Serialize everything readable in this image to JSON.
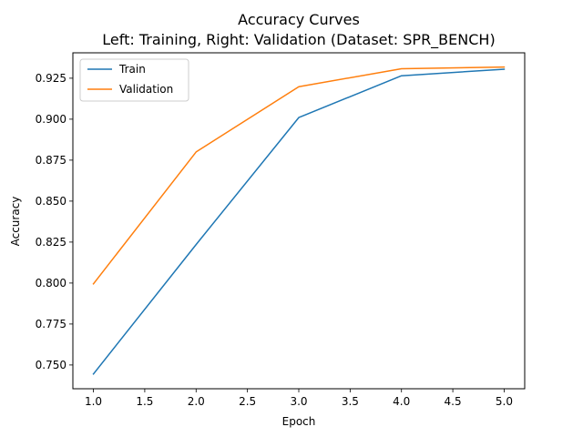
{
  "chart_data": {
    "type": "line",
    "title_line1": "Accuracy Curves",
    "title_line2": "Left: Training, Right: Validation  (Dataset: SPR_BENCH)",
    "xlabel": "Epoch",
    "ylabel": "Accuracy",
    "xlim": [
      0.8,
      5.2
    ],
    "ylim": [
      0.7355,
      0.9405
    ],
    "xticks": [
      1.0,
      1.5,
      2.0,
      2.5,
      3.0,
      3.5,
      4.0,
      4.5,
      5.0
    ],
    "yticks": [
      0.75,
      0.775,
      0.8,
      0.825,
      0.85,
      0.875,
      0.9,
      0.925
    ],
    "x": [
      1,
      2,
      3,
      4,
      5
    ],
    "grid": false,
    "legend_position": "upper-left",
    "series": [
      {
        "name": "Train",
        "color": "#1f77b4",
        "values": [
          0.7445,
          0.8235,
          0.901,
          0.9265,
          0.9305
        ]
      },
      {
        "name": "Validation",
        "color": "#ff7f0e",
        "values": [
          0.7995,
          0.88,
          0.9198,
          0.9308,
          0.9318
        ]
      }
    ]
  }
}
